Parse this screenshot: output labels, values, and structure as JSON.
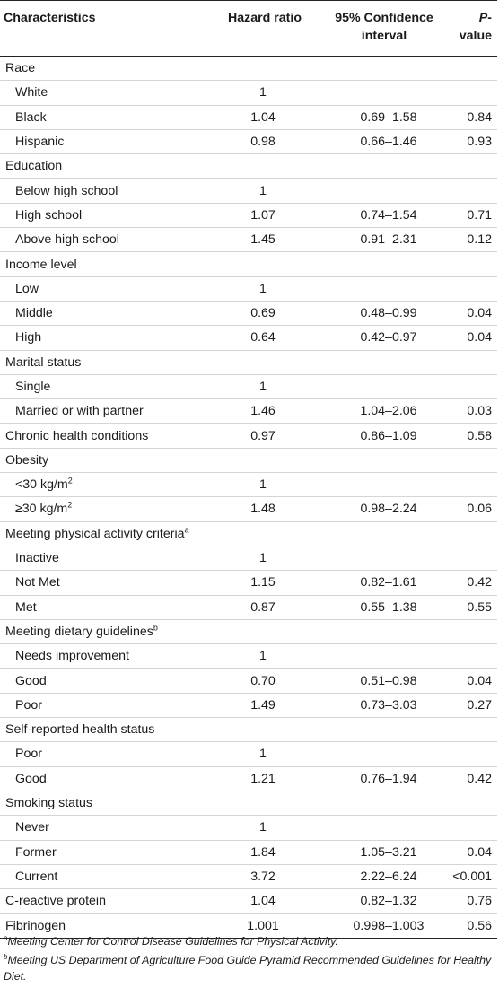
{
  "table": {
    "headers": {
      "characteristics": "Characteristics",
      "hazard_ratio": "Hazard ratio",
      "ci": "95% Confidence interval",
      "p_prefix": "P",
      "p_suffix": "-value"
    },
    "rows": [
      {
        "label": "Race",
        "type": "header"
      },
      {
        "label": "White",
        "type": "sub",
        "hr": "1",
        "ci": "",
        "p": ""
      },
      {
        "label": "Black",
        "type": "sub",
        "hr": "1.04",
        "ci": "0.69–1.58",
        "p": "0.84"
      },
      {
        "label": "Hispanic",
        "type": "sub",
        "hr": "0.98",
        "ci": "0.66–1.46",
        "p": "0.93"
      },
      {
        "label": "Education",
        "type": "header"
      },
      {
        "label": "Below high school",
        "type": "sub",
        "hr": "1",
        "ci": "",
        "p": ""
      },
      {
        "label": "High school",
        "type": "sub",
        "hr": "1.07",
        "ci": "0.74–1.54",
        "p": "0.71"
      },
      {
        "label": "Above high school",
        "type": "sub",
        "hr": "1.45",
        "ci": "0.91–2.31",
        "p": "0.12"
      },
      {
        "label": "Income level",
        "type": "header"
      },
      {
        "label": "Low",
        "type": "sub",
        "hr": "1",
        "ci": "",
        "p": ""
      },
      {
        "label": "Middle",
        "type": "sub",
        "hr": "0.69",
        "ci": "0.48–0.99",
        "p": "0.04"
      },
      {
        "label": "High",
        "type": "sub",
        "hr": "0.64",
        "ci": "0.42–0.97",
        "p": "0.04"
      },
      {
        "label": "Marital status",
        "type": "header"
      },
      {
        "label": "Single",
        "type": "sub",
        "hr": "1",
        "ci": "",
        "p": ""
      },
      {
        "label": "Married or with partner",
        "type": "sub",
        "hr": "1.46",
        "ci": "1.04–2.06",
        "p": "0.03"
      },
      {
        "label": "Chronic health conditions",
        "type": "header",
        "hr": "0.97",
        "ci": "0.86–1.09",
        "p": "0.58"
      },
      {
        "label": "Obesity",
        "type": "header"
      },
      {
        "label": "<30 kg/m",
        "sup": "2",
        "type": "sub",
        "hr": "1",
        "ci": "",
        "p": ""
      },
      {
        "label": "≥30 kg/m",
        "sup": "2",
        "type": "sub",
        "hr": "1.48",
        "ci": "0.98–2.24",
        "p": "0.06"
      },
      {
        "label": "Meeting physical activity criteria",
        "sup": "a",
        "type": "header"
      },
      {
        "label": "Inactive",
        "type": "sub",
        "hr": "1",
        "ci": "",
        "p": ""
      },
      {
        "label": "Not Met",
        "type": "sub",
        "hr": "1.15",
        "ci": "0.82–1.61",
        "p": "0.42"
      },
      {
        "label": "Met",
        "type": "sub",
        "hr": "0.87",
        "ci": "0.55–1.38",
        "p": "0.55"
      },
      {
        "label": "Meeting dietary guidelines",
        "sup": "b",
        "type": "header"
      },
      {
        "label": "Needs improvement",
        "type": "sub",
        "hr": "1",
        "ci": "",
        "p": ""
      },
      {
        "label": "Good",
        "type": "sub",
        "hr": "0.70",
        "ci": "0.51–0.98",
        "p": "0.04"
      },
      {
        "label": "Poor",
        "type": "sub",
        "hr": "1.49",
        "ci": "0.73–3.03",
        "p": "0.27"
      },
      {
        "label": "Self-reported health status",
        "type": "header"
      },
      {
        "label": "Poor",
        "type": "sub",
        "hr": "1",
        "ci": "",
        "p": ""
      },
      {
        "label": "Good",
        "type": "sub",
        "hr": "1.21",
        "ci": "0.76–1.94",
        "p": "0.42"
      },
      {
        "label": "Smoking status",
        "type": "header"
      },
      {
        "label": "Never",
        "type": "sub",
        "hr": "1",
        "ci": "",
        "p": ""
      },
      {
        "label": "Former",
        "type": "sub",
        "hr": "1.84",
        "ci": "1.05–3.21",
        "p": "0.04"
      },
      {
        "label": "Current",
        "type": "sub",
        "hr": "3.72",
        "ci": "2.22–6.24",
        "p": "<0.001"
      },
      {
        "label": "C-reactive protein",
        "type": "header",
        "hr": "1.04",
        "ci": "0.82–1.32",
        "p": "0.76"
      },
      {
        "label": "Fibrinogen",
        "type": "header",
        "hr": "1.001",
        "ci": "0.998–1.003",
        "p": "0.56"
      }
    ]
  },
  "footnotes": [
    {
      "mark": "a",
      "text": "Meeting Center for Control Disease Guidelines for Physical Activity."
    },
    {
      "mark": "b",
      "text": "Meeting US Department of Agriculture Food Guide Pyramid Recommended Guidelines for Healthy Diet."
    }
  ]
}
